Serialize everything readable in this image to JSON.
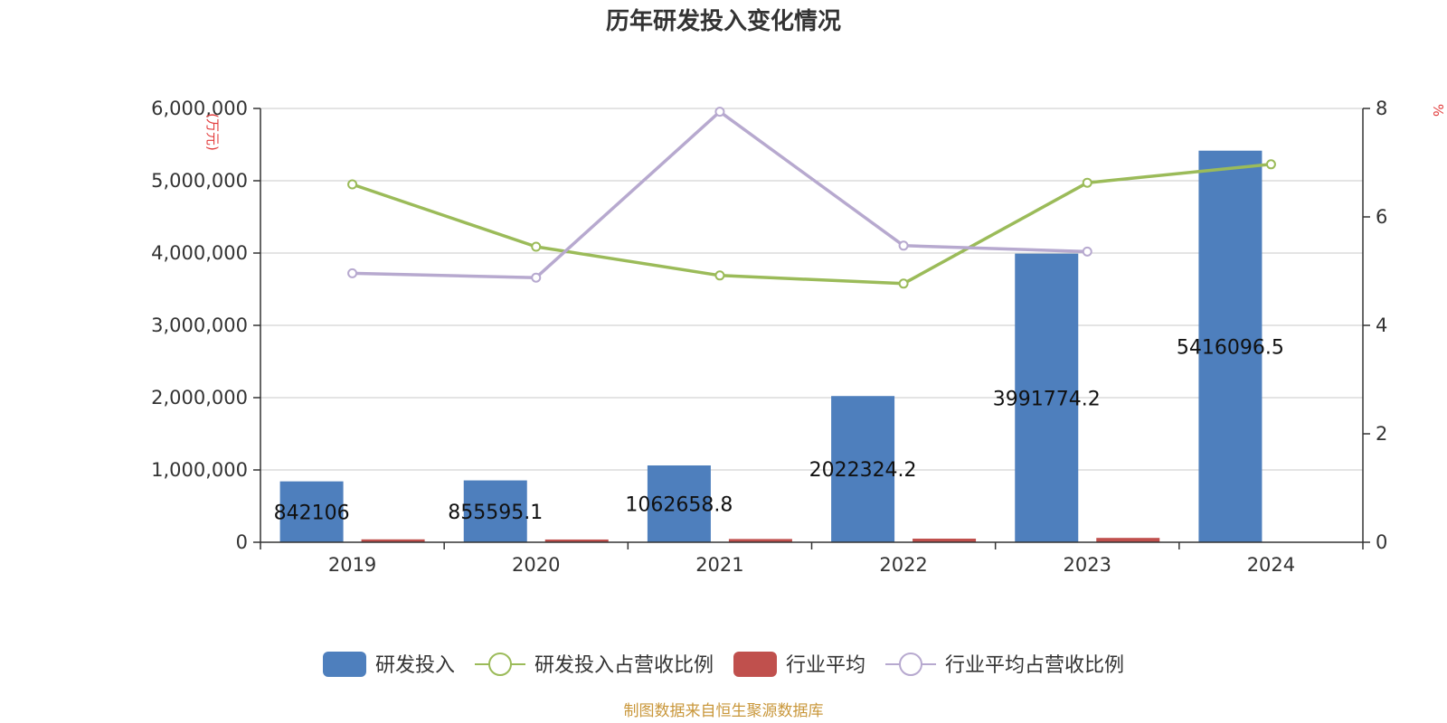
{
  "chart_data": {
    "type": "bar",
    "title": "历年研发投入变化情况",
    "ylabel": "(万元)",
    "y2label": "%",
    "source": "制图数据来自恒生聚源数据库",
    "categories": [
      "2019",
      "2020",
      "2021",
      "2022",
      "2023",
      "2024"
    ],
    "ylim": [
      0,
      6000000
    ],
    "yticks": [
      "0",
      "1,000,000",
      "2,000,000",
      "3,000,000",
      "4,000,000",
      "5,000,000",
      "6,000,000"
    ],
    "y2lim": [
      0,
      8
    ],
    "y2ticks": [
      "0",
      "2",
      "4",
      "6",
      "8"
    ],
    "grid": true,
    "legend_position": "bottom",
    "series": [
      {
        "name": "研发投入",
        "kind": "bar",
        "axis": "left",
        "color": "#4e7fbd",
        "values": [
          842106,
          855595.1,
          1062658.8,
          2022324.2,
          3991774.2,
          5416096.5
        ],
        "labels": [
          "842106",
          "855595.1",
          "1062658.8",
          "2022324.2",
          "3991774.2",
          "5416096.5"
        ]
      },
      {
        "name": "研发投入占营收比例",
        "kind": "line",
        "axis": "right",
        "color": "#9bbb59",
        "values": [
          6.6,
          5.45,
          4.92,
          4.77,
          6.63,
          6.97
        ]
      },
      {
        "name": "行业平均",
        "kind": "bar",
        "axis": "left",
        "color": "#c0504d",
        "values": [
          40000,
          38000,
          45000,
          50000,
          60000,
          null
        ]
      },
      {
        "name": "行业平均占营收比例",
        "kind": "line",
        "axis": "right",
        "color": "#b7a9cf",
        "values": [
          4.96,
          4.88,
          7.94,
          5.47,
          5.36,
          null
        ]
      }
    ]
  }
}
